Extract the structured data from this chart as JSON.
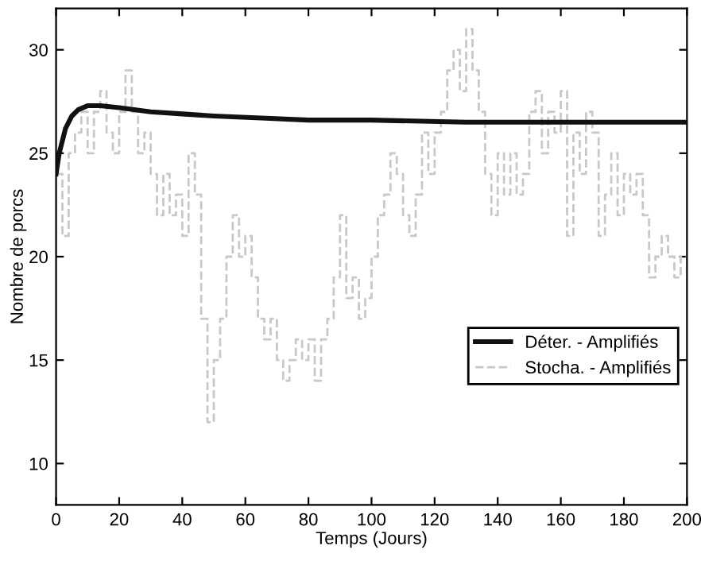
{
  "chart_data": {
    "type": "line",
    "xlabel": "Temps (Jours)",
    "ylabel": "Nombre de porcs",
    "xlim": [
      0,
      200
    ],
    "ylim": [
      8,
      32
    ],
    "xticks": [
      0,
      20,
      40,
      60,
      80,
      100,
      120,
      140,
      160,
      180,
      200
    ],
    "yticks": [
      10,
      15,
      20,
      25,
      30
    ],
    "grid": false,
    "legend": "right",
    "marker": "none",
    "series": [
      {
        "name": "Déter. - Amplifiés",
        "color": "#111111",
        "line_style": "solid",
        "x": [
          0,
          1,
          3,
          5,
          7,
          10,
          14,
          20,
          30,
          40,
          50,
          65,
          80,
          100,
          130,
          160,
          200
        ],
        "values": [
          24,
          25,
          26.2,
          26.8,
          27.1,
          27.3,
          27.3,
          27.2,
          27.0,
          26.9,
          26.8,
          26.7,
          26.6,
          26.6,
          26.5,
          26.5,
          26.5
        ]
      },
      {
        "name": "Stocha. - Amplifiés",
        "color": "#c8c8c8",
        "type": "step",
        "line_style": "dashed",
        "x": [
          0,
          2,
          4,
          6,
          8,
          10,
          12,
          14,
          16,
          18,
          20,
          22,
          24,
          26,
          28,
          30,
          32,
          34,
          36,
          38,
          40,
          42,
          44,
          46,
          48,
          50,
          52,
          54,
          56,
          58,
          60,
          62,
          64,
          66,
          68,
          70,
          72,
          74,
          76,
          78,
          80,
          82,
          84,
          86,
          88,
          90,
          92,
          94,
          96,
          98,
          100,
          102,
          104,
          106,
          108,
          110,
          112,
          114,
          116,
          118,
          120,
          122,
          124,
          126,
          128,
          130,
          132,
          134,
          136,
          138,
          140,
          142,
          144,
          146,
          148,
          150,
          152,
          154,
          156,
          158,
          160,
          162,
          164,
          166,
          168,
          170,
          172,
          174,
          176,
          178,
          180,
          182,
          184,
          186,
          188,
          190,
          192,
          194,
          196,
          198,
          200
        ],
        "values": [
          24,
          21,
          25,
          26,
          27,
          25,
          27,
          28,
          26,
          25,
          27,
          29,
          27,
          25,
          26,
          24,
          22,
          24,
          22,
          23,
          21,
          25,
          23,
          17,
          12,
          15,
          17,
          20,
          22,
          20,
          21,
          19,
          17,
          16,
          17,
          15,
          14,
          15,
          16,
          15,
          16,
          14,
          16,
          17,
          19,
          22,
          18,
          19,
          17,
          18,
          20,
          22,
          23,
          25,
          24,
          22,
          21,
          23,
          26,
          24,
          26,
          27,
          29,
          30,
          28,
          31,
          29,
          27,
          24,
          22,
          25,
          23,
          25,
          23,
          24,
          27,
          28,
          25,
          27,
          26,
          28,
          21,
          26,
          24,
          27,
          26,
          21,
          23,
          25,
          22,
          24,
          23,
          24,
          22,
          19,
          20,
          21,
          20,
          19,
          20,
          20
        ]
      }
    ]
  }
}
